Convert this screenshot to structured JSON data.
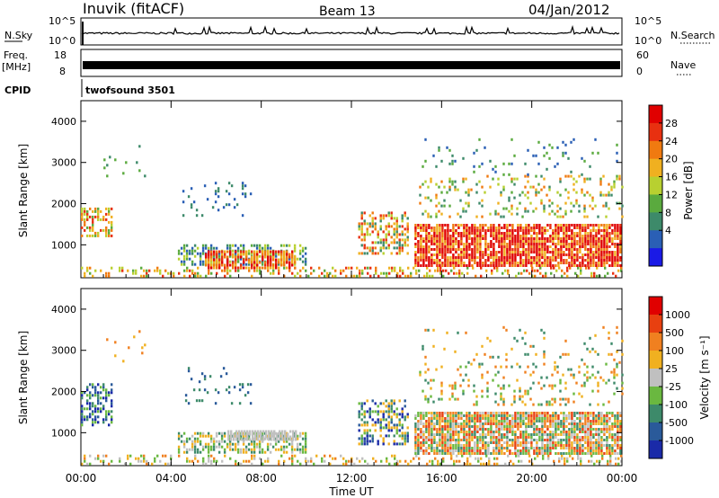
{
  "header": {
    "station": "Inuvik (fitACF)",
    "beam": "Beam 13",
    "date": "04/Jan/2012"
  },
  "top_panels": {
    "nsky_label": "N.Sky",
    "nsky_ticks": [
      "10^5",
      "10^0"
    ],
    "nsearch_label": "N.Search",
    "nsearch_ticks": [
      "10^5",
      "10^0"
    ],
    "freq_label": "Freq.",
    "freq_unit": "[MHz]",
    "freq_ticks": [
      "18",
      "8"
    ],
    "nave_label": "Nave",
    "nave_ticks": [
      "60",
      "0"
    ],
    "cpid_label": "CPID",
    "cpid_value": "twofsound 3501"
  },
  "chart_data": [
    {
      "type": "heatmap",
      "panel": "power",
      "ylabel": "Slant Range [km]",
      "yticks": [
        "1000",
        "2000",
        "3000",
        "4000"
      ],
      "ylim": [
        200,
        4500
      ],
      "xlim_hours": [
        0,
        24
      ],
      "colorbar_label": "Power [dB]",
      "colorbar_ticks": [
        "28",
        "24",
        "20",
        "16",
        "12",
        "8",
        "4"
      ],
      "colors": [
        "#1a1ae6",
        "#2a5fb5",
        "#3d8a6a",
        "#5aaa3e",
        "#b8d030",
        "#f0b020",
        "#f07a10",
        "#e83010",
        "#e00000"
      ]
    },
    {
      "type": "heatmap",
      "panel": "velocity",
      "ylabel": "Slant Range [km]",
      "yticks": [
        "1000",
        "2000",
        "3000",
        "4000"
      ],
      "ylim": [
        200,
        4500
      ],
      "xlim_hours": [
        0,
        24
      ],
      "colorbar_label": "Velocity [m s⁻¹]",
      "colorbar_ticks": [
        "1000",
        "500",
        "100",
        "25",
        "-25",
        "-100",
        "-500",
        "-1000"
      ],
      "colors": [
        "#1a2aa8",
        "#2a5a9a",
        "#3d8a6a",
        "#6ab840",
        "#c0c0c0",
        "#f0b020",
        "#f08020",
        "#e84010",
        "#e00000"
      ]
    }
  ],
  "xaxis": {
    "ticks": [
      "00:00",
      "04:00",
      "08:00",
      "12:00",
      "16:00",
      "20:00",
      "00:00"
    ],
    "label": "Time UT"
  }
}
